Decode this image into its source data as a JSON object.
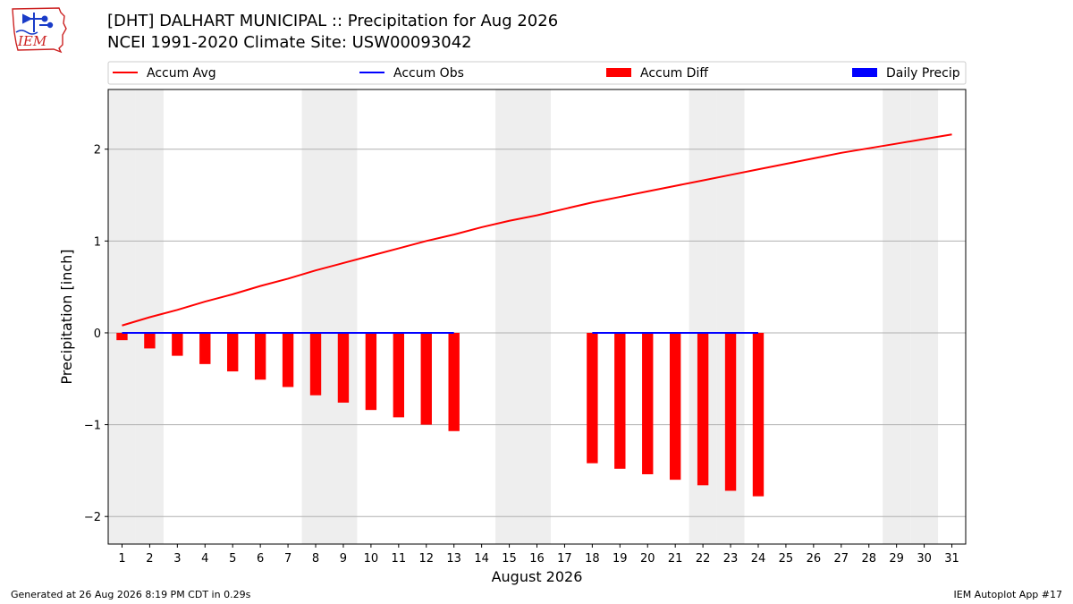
{
  "header": {
    "title_line1": "[DHT] DALHART MUNICIPAL :: Precipitation for Aug 2026",
    "title_line2": "NCEI 1991-2020 Climate Site: USW00093042",
    "logo_text": "IEM"
  },
  "footer": {
    "left": "Generated at 26 Aug 2026 8:19 PM CDT in 0.29s",
    "right": "IEM Autoplot App #17"
  },
  "colors": {
    "accum_avg": "#ff0000",
    "accum_obs": "#0000ff",
    "accum_diff": "#ff0000",
    "daily_precip": "#0000ff",
    "weekend_band": "#eeeeee",
    "grid": "#b0b0b0"
  },
  "chart_data": {
    "type": "bar",
    "xlabel": "August 2026",
    "ylabel": "Precipitation [inch]",
    "xlim": [
      0.5,
      31.5
    ],
    "ylim": [
      -2.3,
      2.65
    ],
    "x_ticks": [
      1,
      2,
      3,
      4,
      5,
      6,
      7,
      8,
      9,
      10,
      11,
      12,
      13,
      14,
      15,
      16,
      17,
      18,
      19,
      20,
      21,
      22,
      23,
      24,
      25,
      26,
      27,
      28,
      29,
      30,
      31
    ],
    "y_ticks": [
      -2,
      -1,
      0,
      1,
      2
    ],
    "y_tick_labels": [
      "−2",
      "−1",
      "0",
      "1",
      "2"
    ],
    "grid": "y",
    "weekend_days": [
      1,
      2,
      8,
      9,
      15,
      16,
      22,
      23,
      29,
      30
    ],
    "legend": {
      "placement": "top",
      "entries": [
        "Accum Avg",
        "Accum Obs",
        "Accum Diff",
        "Daily Precip"
      ]
    },
    "series": [
      {
        "name": "Accum Avg",
        "type": "line",
        "x": [
          1,
          2,
          3,
          4,
          5,
          6,
          7,
          8,
          9,
          10,
          11,
          12,
          13,
          14,
          15,
          16,
          17,
          18,
          19,
          20,
          21,
          22,
          23,
          24,
          25,
          26,
          27,
          28,
          29,
          30,
          31
        ],
        "values": [
          0.08,
          0.17,
          0.25,
          0.34,
          0.42,
          0.51,
          0.59,
          0.68,
          0.76,
          0.84,
          0.92,
          1.0,
          1.07,
          1.15,
          1.22,
          1.28,
          1.35,
          1.42,
          1.48,
          1.54,
          1.6,
          1.66,
          1.72,
          1.78,
          1.84,
          1.9,
          1.96,
          2.01,
          2.06,
          2.11,
          2.16
        ]
      },
      {
        "name": "Accum Obs",
        "type": "line",
        "segments": [
          {
            "x": [
              1,
              2,
              3,
              4,
              5,
              6,
              7,
              8,
              9,
              10,
              11,
              12,
              13
            ],
            "values": [
              0,
              0,
              0,
              0,
              0,
              0,
              0,
              0,
              0,
              0,
              0,
              0,
              0
            ]
          },
          {
            "x": [
              18,
              19,
              20,
              21,
              22,
              23,
              24
            ],
            "values": [
              0,
              0,
              0,
              0,
              0,
              0,
              0
            ]
          }
        ]
      },
      {
        "name": "Accum Diff",
        "type": "bar",
        "x": [
          1,
          2,
          3,
          4,
          5,
          6,
          7,
          8,
          9,
          10,
          11,
          12,
          13,
          18,
          19,
          20,
          21,
          22,
          23,
          24
        ],
        "values": [
          -0.08,
          -0.17,
          -0.25,
          -0.34,
          -0.42,
          -0.51,
          -0.59,
          -0.68,
          -0.76,
          -0.84,
          -0.92,
          -1.0,
          -1.07,
          -1.42,
          -1.48,
          -1.54,
          -1.6,
          -1.66,
          -1.72,
          -1.78
        ]
      },
      {
        "name": "Daily Precip",
        "type": "bar",
        "x": [],
        "values": []
      }
    ]
  }
}
